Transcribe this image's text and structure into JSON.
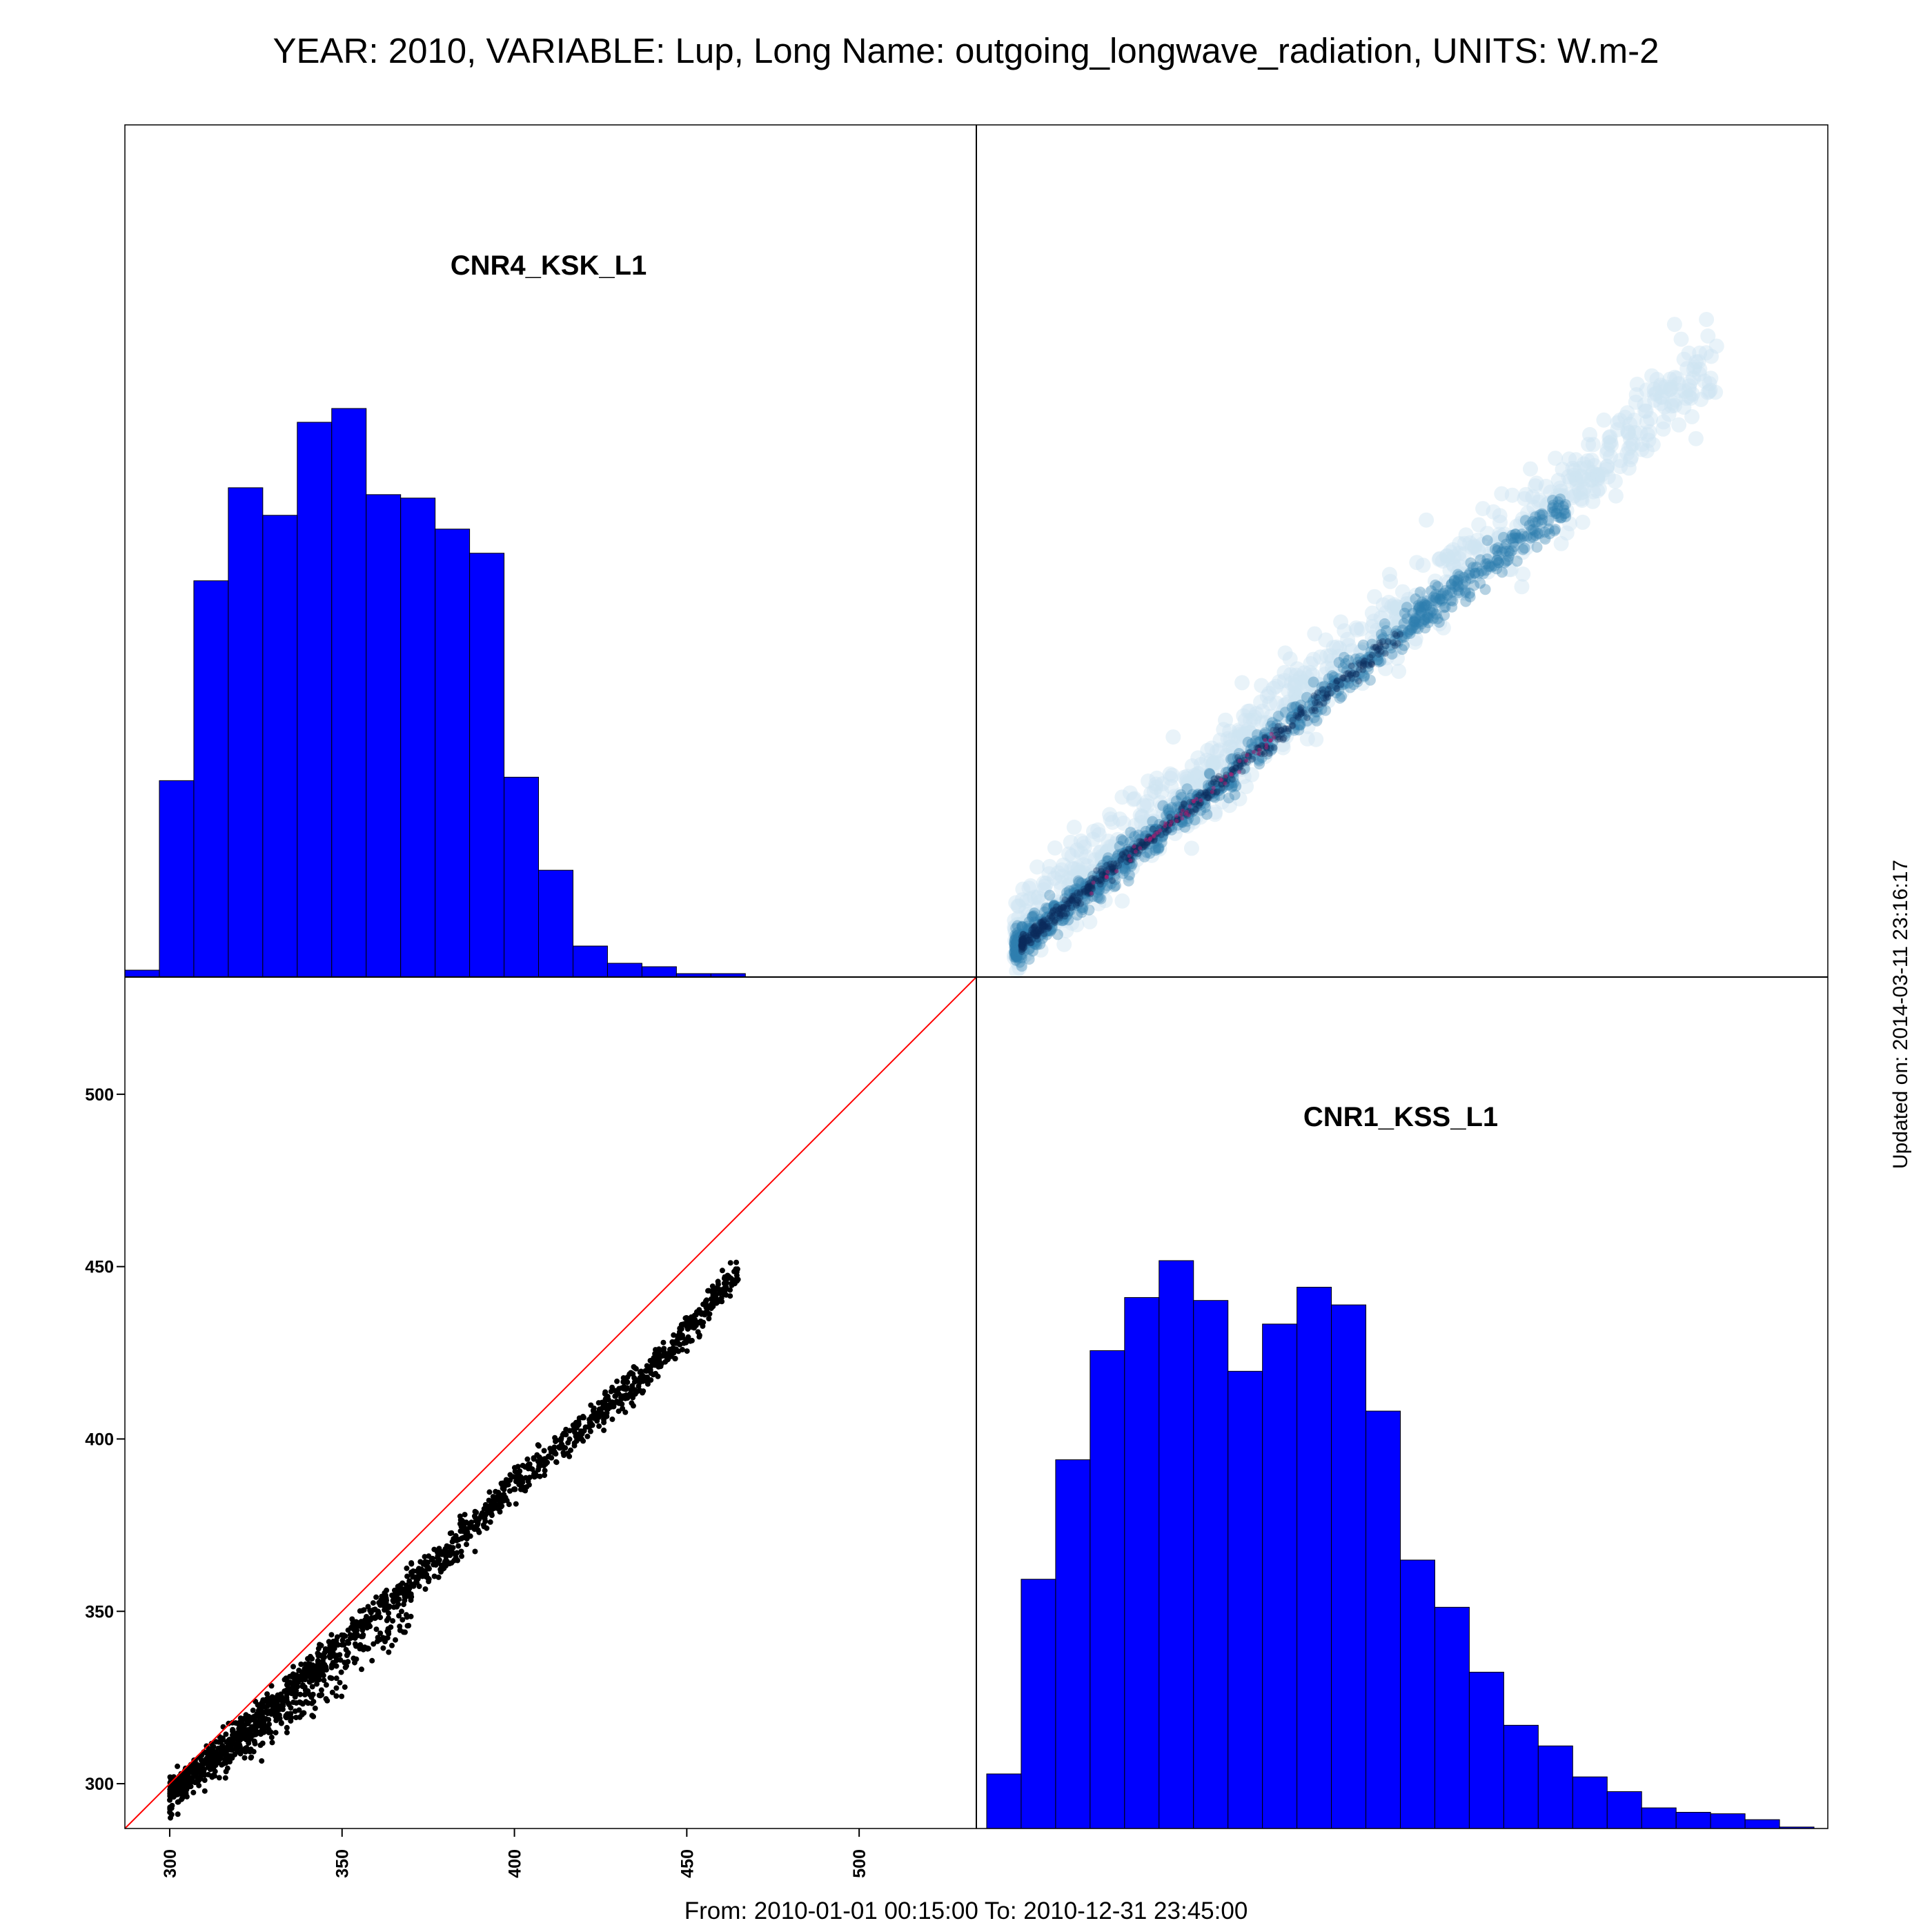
{
  "header": {
    "title": "YEAR: 2010, VARIABLE: Lup, Long Name: outgoing_longwave_radiation, UNITS: W.m-2"
  },
  "footer": {
    "range": "From: 2010-01-01 00:15:00 To: 2010-12-31 23:45:00",
    "updated": "Updated on: 2014-03-11 23:16:17"
  },
  "colors": {
    "bar_fill": "#0000ff",
    "bar_edge": "#000000",
    "identity_line": "#ff0000",
    "scatter_point": "#000000",
    "density_low": "#cfe4f1",
    "density_mid": "#2f7eb0",
    "density_high": "#0b2a5c",
    "density_peak": "#b01a6f"
  },
  "chart_data": [
    {
      "type": "bar",
      "panel": "top-left",
      "title": "CNR4_KSK_L1",
      "bin_width": 10,
      "bin_starts": [
        287,
        297,
        307,
        317,
        327,
        337,
        347,
        357,
        367,
        377,
        387,
        397,
        407,
        417,
        427,
        437,
        447,
        457
      ],
      "values": [
        2,
        57,
        115,
        142,
        134,
        161,
        165,
        140,
        139,
        130,
        123,
        58,
        31,
        9,
        4,
        3,
        1,
        1
      ],
      "xlim": [
        287,
        534
      ]
    },
    {
      "type": "heatmap",
      "panel": "top-right",
      "description_axes": "CNR1_KSS_L1 (x) vs CNR4_KSK_L1 (y)",
      "ridge": [
        [
          298,
          295
        ],
        [
          320,
          313
        ],
        [
          350,
          337
        ],
        [
          380,
          362
        ],
        [
          400,
          378
        ],
        [
          420,
          395
        ],
        [
          460,
          425
        ],
        [
          480,
          441
        ],
        [
          502,
          462
        ]
      ],
      "xlim": [
        287,
        534
      ],
      "ylim": [
        287,
        534
      ]
    },
    {
      "type": "scatter",
      "panel": "bottom-left",
      "x_label": "",
      "y_label": "",
      "x_ticks": [
        "300",
        "350",
        "400",
        "450",
        "500"
      ],
      "y_ticks": [
        "300",
        "350",
        "400",
        "450",
        "500"
      ],
      "xlim": [
        287,
        534
      ],
      "ylim": [
        287,
        534
      ],
      "reference_line": "y = x",
      "main_band": [
        [
          300,
          298
        ],
        [
          320,
          315
        ],
        [
          340,
          333
        ],
        [
          360,
          351
        ],
        [
          380,
          368
        ],
        [
          400,
          388
        ],
        [
          420,
          405
        ],
        [
          440,
          421
        ],
        [
          465,
          450
        ]
      ],
      "outlier_branch": [
        [
          310,
          301
        ],
        [
          325,
          312
        ],
        [
          340,
          323
        ],
        [
          355,
          338
        ],
        [
          370,
          348
        ]
      ]
    },
    {
      "type": "bar",
      "panel": "bottom-right",
      "title": "CNR1_KSS_L1",
      "bin_width": 10,
      "bin_starts": [
        290,
        300,
        310,
        320,
        330,
        340,
        350,
        360,
        370,
        380,
        390,
        400,
        410,
        420,
        430,
        440,
        450,
        460,
        470,
        480,
        490,
        500,
        510,
        520
      ],
      "values": [
        37,
        169,
        250,
        324,
        360,
        385,
        358,
        310,
        342,
        367,
        355,
        283,
        182,
        150,
        106,
        70,
        56,
        35,
        25,
        14,
        11,
        10,
        6,
        1
      ],
      "xlim": [
        287,
        534
      ]
    }
  ]
}
